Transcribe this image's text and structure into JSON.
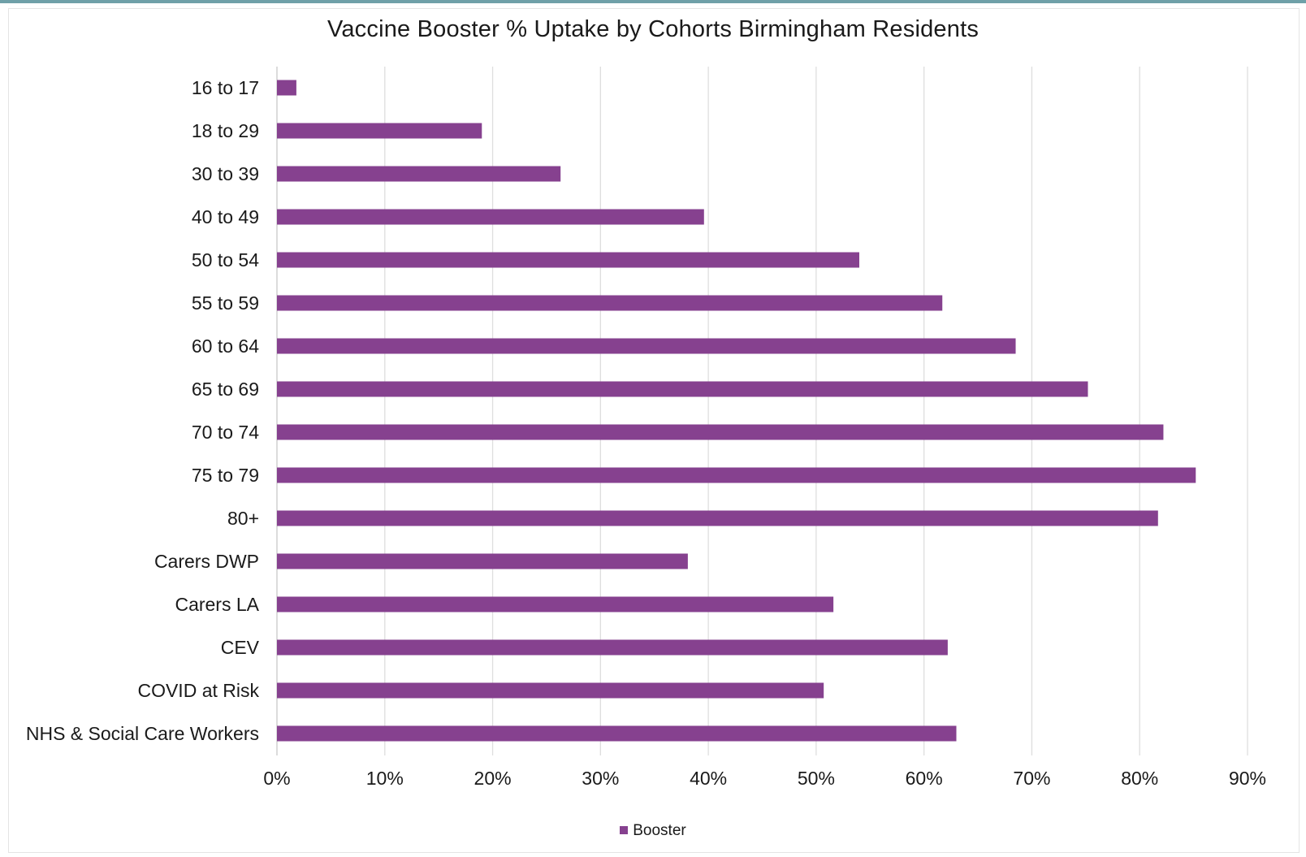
{
  "chart_data": {
    "type": "bar",
    "orientation": "horizontal",
    "title": "Vaccine Booster % Uptake by Cohorts Birmingham Residents",
    "xlabel": "",
    "ylabel": "",
    "categories": [
      "16 to 17",
      "18 to 29",
      "30 to 39",
      "40 to 49",
      "50 to 54",
      "55 to 59",
      "60 to 64",
      "65 to 69",
      "70 to 74",
      "75 to 79",
      "80+",
      "Carers DWP",
      "Carers LA",
      "CEV",
      "COVID at Risk",
      "NHS & Social Care Workers"
    ],
    "series": [
      {
        "name": "Booster",
        "color": "#86418f",
        "values": [
          1.8,
          19.0,
          26.3,
          39.6,
          54.0,
          61.7,
          68.5,
          75.2,
          82.2,
          85.2,
          81.7,
          38.1,
          51.6,
          62.2,
          50.7,
          63.0
        ]
      }
    ],
    "xlim": [
      0,
      90
    ],
    "xticks": [
      "0%",
      "10%",
      "20%",
      "30%",
      "40%",
      "50%",
      "60%",
      "70%",
      "80%",
      "90%"
    ],
    "grid": "vertical",
    "legend_position": "bottom"
  }
}
